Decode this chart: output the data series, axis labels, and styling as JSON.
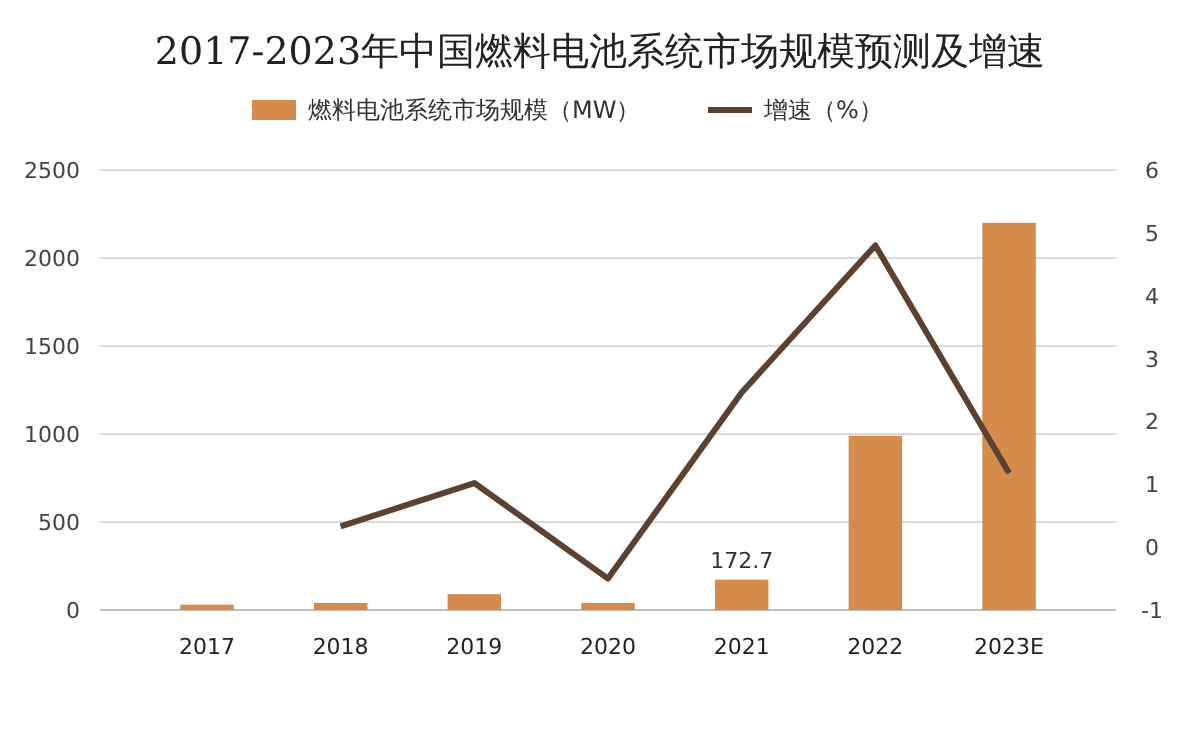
{
  "chart_data": {
    "type": "bar",
    "title": "2017-2023年中国燃料电池系统市场规模预测及增速",
    "categories": [
      "2017",
      "2018",
      "2019",
      "2020",
      "2021",
      "2022",
      "2023E"
    ],
    "series": [
      {
        "name": "燃料电池系统市场规模（MW）",
        "color": "#d58b4c",
        "values": [
          30,
          40,
          90,
          40,
          172.7,
          990,
          2200
        ],
        "value_labels": [
          null,
          null,
          null,
          null,
          "172.7",
          null,
          null
        ]
      },
      {
        "name": "增速（%）",
        "type": "line",
        "axis": "y2",
        "color": "#5b4130",
        "values": [
          null,
          0.33,
          1.02,
          -0.5,
          2.46,
          4.8,
          1.18
        ]
      }
    ],
    "ylim": [
      0,
      2500
    ],
    "yticks": [
      0,
      500,
      1000,
      1500,
      2000,
      2500
    ],
    "y2lim": [
      -1,
      6
    ],
    "y2ticks": [
      -1,
      0,
      1,
      2,
      3,
      4,
      5,
      6
    ],
    "grid": "y",
    "legend": "top"
  }
}
